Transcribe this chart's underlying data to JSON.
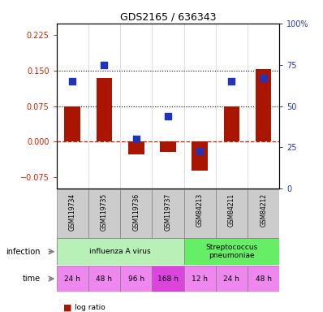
{
  "title": "GDS2165 / 636343",
  "samples": [
    "GSM119734",
    "GSM119735",
    "GSM119736",
    "GSM119737",
    "GSM84213",
    "GSM84211",
    "GSM84212"
  ],
  "log_ratio": [
    0.075,
    0.135,
    -0.028,
    -0.022,
    -0.062,
    0.075,
    0.153
  ],
  "percentile_rank": [
    65,
    75,
    30,
    44,
    23,
    65,
    67
  ],
  "ylim_left": [
    -0.1,
    0.25
  ],
  "ylim_right": [
    0,
    100
  ],
  "yticks_left": [
    -0.075,
    0,
    0.075,
    0.15,
    0.225
  ],
  "yticks_right": [
    0,
    25,
    50,
    75,
    100
  ],
  "hlines": [
    0.075,
    0.15
  ],
  "infection_groups": [
    {
      "label": "influenza A virus",
      "start": 0,
      "end": 4,
      "color": "#b8f0b8"
    },
    {
      "label": "Streptococcus\npneumoniae",
      "start": 4,
      "end": 7,
      "color": "#66ee66"
    }
  ],
  "time_labels": [
    "24 h",
    "48 h",
    "96 h",
    "168 h",
    "12 h",
    "24 h",
    "48 h"
  ],
  "time_colors": [
    "#ee88ee",
    "#ee88ee",
    "#ee88ee",
    "#dd44dd",
    "#ee88ee",
    "#ee88ee",
    "#ee88ee"
  ],
  "bar_color": "#aa1500",
  "dot_color": "#2233bb",
  "zero_line_color": "#cc2200",
  "bar_width": 0.5,
  "dot_size": 30,
  "sample_box_color": "#cccccc",
  "left_label_color": "#000000",
  "left_tick_color": "#cc2200",
  "right_tick_color": "#2233bb"
}
